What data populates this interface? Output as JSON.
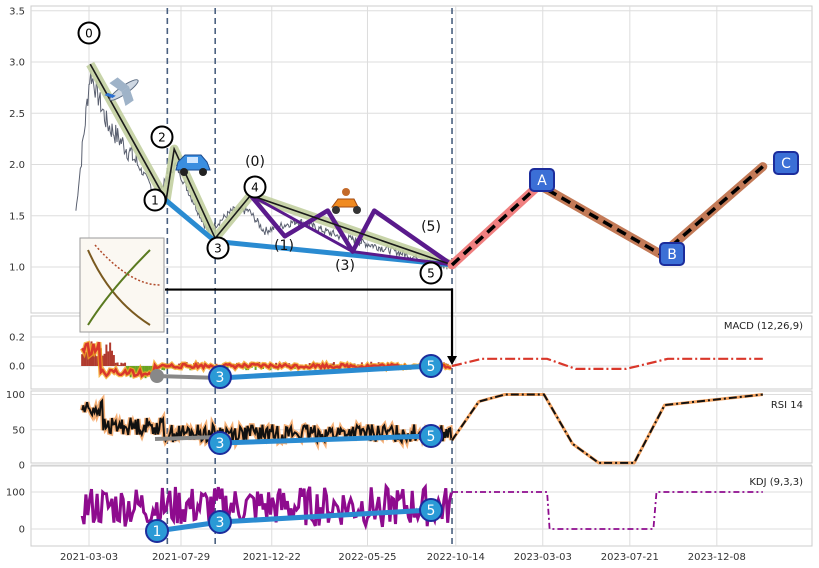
{
  "chart_data": {
    "type": "line",
    "x_ticks": [
      "2021-03-03",
      "2021-07-29",
      "2021-12-22",
      "2022-05-25",
      "2022-10-14",
      "2023-03-03",
      "2023-07-21",
      "2023-12-08"
    ],
    "vertical_dashed_dates": [
      "2021-07-07",
      "2021-09-22",
      "2022-10-08"
    ],
    "price_panel": {
      "yticks": [
        "1.0",
        "1.5",
        "2.0",
        "2.5",
        "3.0",
        "3.5"
      ],
      "ylim": [
        0.55,
        3.55
      ],
      "price_path": [
        [
          "2021-02-10",
          1.55
        ],
        [
          "2021-03-05",
          2.9
        ],
        [
          "2021-04-01",
          2.4
        ],
        [
          "2021-05-10",
          2.1
        ],
        [
          "2021-06-20",
          1.7
        ],
        [
          "2021-07-20",
          2.0
        ],
        [
          "2021-09-10",
          1.35
        ],
        [
          "2021-10-20",
          1.55
        ],
        [
          "2021-11-15",
          1.55
        ],
        [
          "2021-12-10",
          1.35
        ],
        [
          "2022-02-01",
          1.45
        ],
        [
          "2022-04-10",
          1.3
        ],
        [
          "2022-07-10",
          1.15
        ],
        [
          "2022-10-01",
          1.0
        ]
      ],
      "wave_labels": [
        "0",
        "1",
        "2",
        "3",
        "4",
        "5"
      ],
      "wave_points": [
        [
          "2021-03-05",
          2.98
        ],
        [
          "2021-07-05",
          1.65
        ],
        [
          "2021-07-18",
          2.15
        ],
        [
          "2021-09-22",
          1.28
        ],
        [
          "2021-11-18",
          1.7
        ],
        [
          "2022-10-08",
          1.02
        ]
      ],
      "subwave_labels": [
        "(0)",
        "(1)",
        "(3)",
        "(5)"
      ],
      "subwave_points": [
        [
          "2021-11-18",
          1.7
        ],
        [
          "2022-01-12",
          1.3
        ],
        [
          "2022-03-22",
          1.55
        ],
        [
          "2022-05-01",
          1.15
        ],
        [
          "2022-06-05",
          1.55
        ],
        [
          "2022-10-08",
          1.02
        ]
      ],
      "support_line": [
        [
          "2021-07-05",
          1.65
        ],
        [
          "2021-09-22",
          1.25
        ],
        [
          "2022-10-08",
          1.02
        ]
      ],
      "projection_labels": [
        "A",
        "B",
        "C"
      ],
      "projection": [
        [
          "2022-10-08",
          1.02
        ],
        [
          "2023-02-25",
          1.8
        ],
        [
          "2023-09-10",
          1.12
        ],
        [
          "2024-02-20",
          1.98
        ]
      ]
    },
    "macd_panel": {
      "label": "MACD (12,26,9)",
      "yticks": [
        "0.0",
        "0.2"
      ],
      "forecast": [
        [
          "2022-10-08",
          0.0
        ],
        [
          "2022-11-25",
          0.05
        ],
        [
          "2023-02-10",
          0.05
        ],
        [
          "2023-03-10",
          0.05
        ],
        [
          "2023-04-25",
          -0.02
        ],
        [
          "2023-07-15",
          -0.02
        ],
        [
          "2023-09-20",
          0.05
        ],
        [
          "2024-02-20",
          0.05
        ]
      ],
      "divergence_label": "3",
      "divergence_end_label": "5"
    },
    "rsi_panel": {
      "label": "RSI 14",
      "yticks": [
        "0",
        "50",
        "100"
      ],
      "forecast": [
        [
          "2022-10-08",
          35
        ],
        [
          "2022-11-20",
          90
        ],
        [
          "2023-01-01",
          100
        ],
        [
          "2023-03-05",
          100
        ],
        [
          "2023-04-20",
          30
        ],
        [
          "2023-06-01",
          3
        ],
        [
          "2023-07-28",
          3
        ],
        [
          "2023-09-15",
          85
        ],
        [
          "2024-02-20",
          100
        ]
      ],
      "divergence_label": "3",
      "divergence_end_label": "5"
    },
    "kdj_panel": {
      "label": "KDJ (9,3,3)",
      "yticks": [
        "0",
        "100"
      ],
      "forecast": [
        [
          "2022-10-08",
          100
        ],
        [
          "2023-03-10",
          100
        ],
        [
          "2023-03-14",
          0
        ],
        [
          "2023-08-28",
          0
        ],
        [
          "2023-09-02",
          100
        ],
        [
          "2024-02-20",
          100
        ]
      ],
      "divergence_labels": [
        "1",
        "3",
        "5"
      ]
    },
    "colors": {
      "wave_line": "#1a1a1a",
      "wave_fill": "#c2cfa0",
      "subwave": "#5a1a8c",
      "support": "#2a8bd1",
      "projection_up_pink": "#f08080",
      "projection_brown": "#c37a57",
      "label_box": "#3b6fd6",
      "label_box_border": "#1c2d9c",
      "macd_line": "#d9372a",
      "macd_hist_up": "#6aa320",
      "macd_hist_down": "#b03a2e",
      "rsi_line": "#111111",
      "rsi_glow": "#f4a360",
      "kdj_line": "#8e0b8e",
      "dashed": "#4a6080"
    },
    "emoji": [
      "airplane",
      "car",
      "scooter"
    ]
  }
}
